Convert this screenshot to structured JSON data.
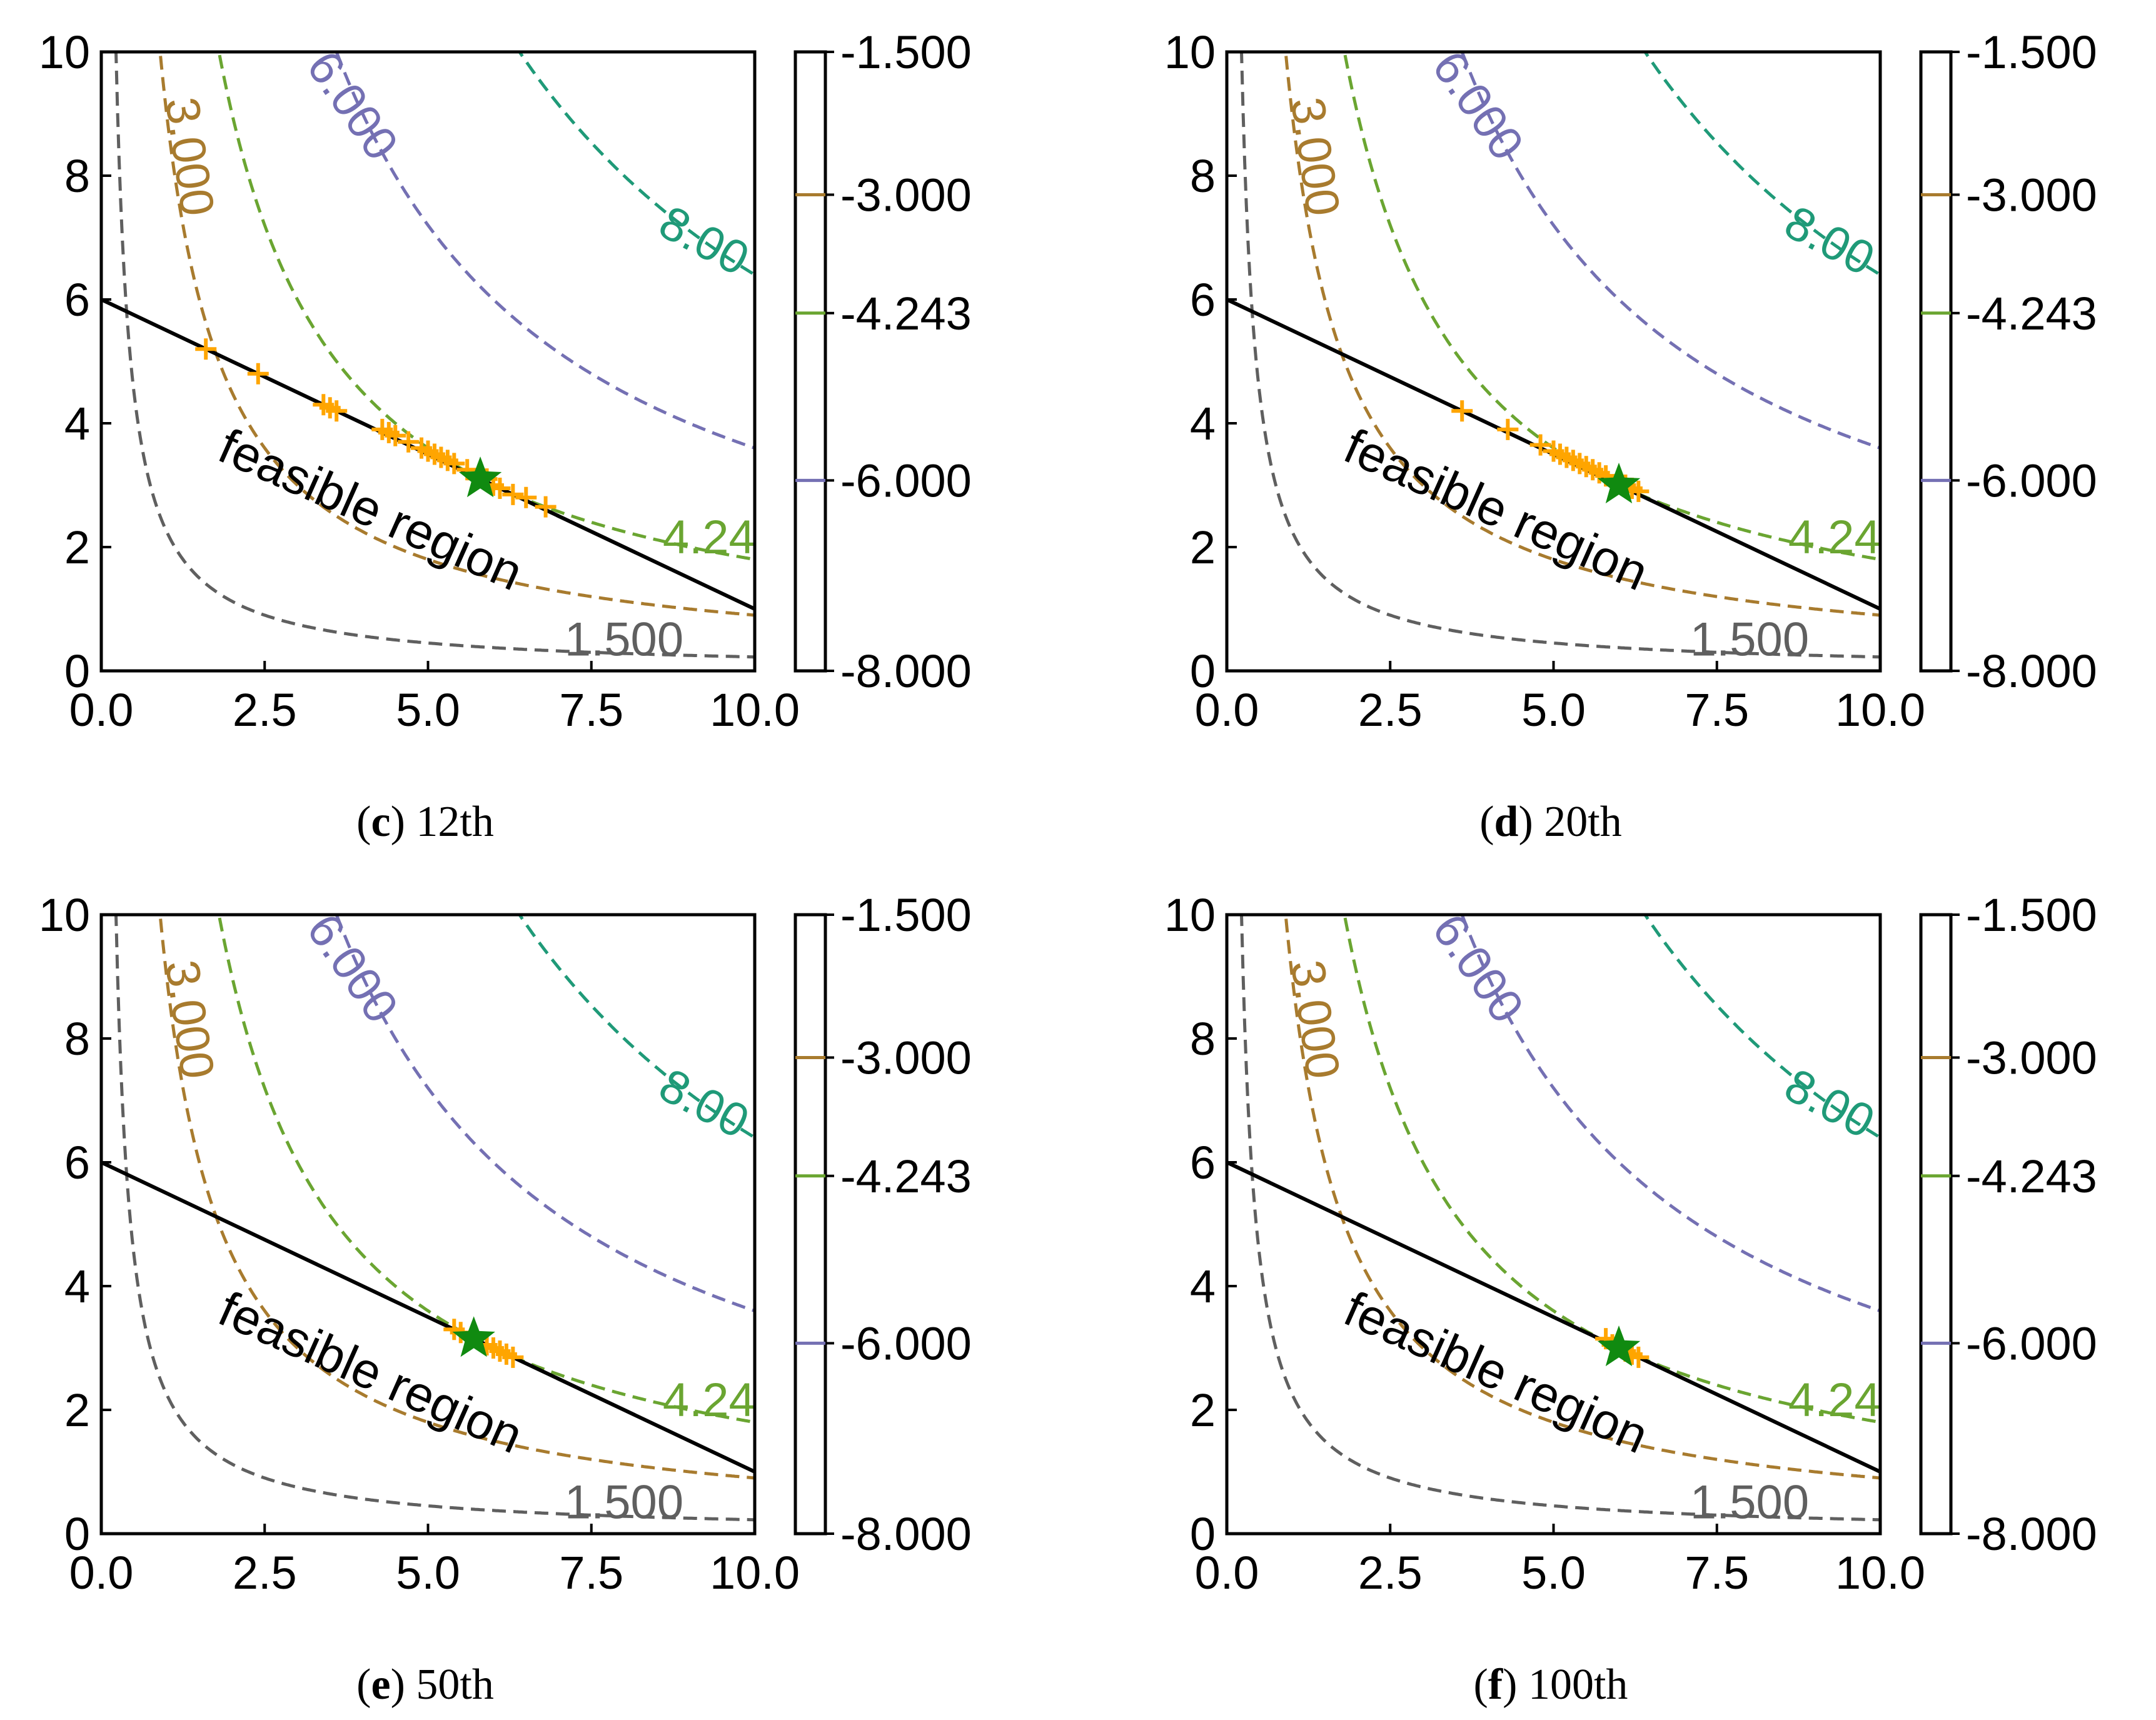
{
  "chart_data": {
    "type": "contour",
    "x_ticks": [
      "0.0",
      "2.5",
      "5.0",
      "7.5",
      "10.0"
    ],
    "y_ticks": [
      "0",
      "2",
      "4",
      "6",
      "8",
      "10"
    ],
    "xlim": [
      0,
      10
    ],
    "ylim": [
      0,
      10
    ],
    "colorbar": {
      "ticks": [
        "-1.500",
        "-3.000",
        "-4.243",
        "-6.000",
        "-8.000"
      ],
      "tick_values": [
        -1.5,
        -3.0,
        -4.243,
        -6.0,
        -8.0
      ],
      "range": [
        -8.0,
        -1.5
      ]
    },
    "contour_levels": [
      {
        "value": 1.5,
        "label": "1.500",
        "color": "#5f5f5f"
      },
      {
        "value": 3.0,
        "label": "3.000",
        "color": "#a87b2e"
      },
      {
        "value": 4.243,
        "label": "4.24",
        "color": "#6aa531"
      },
      {
        "value": 6.0,
        "label": "6.000",
        "color": "#7470b3"
      },
      {
        "value": 8.0,
        "label": "8.00",
        "color": "#1f9a78"
      }
    ],
    "constraint_line": {
      "x": [
        0,
        10
      ],
      "y": [
        6,
        1
      ],
      "color": "#000000"
    },
    "region_label": "feasible region",
    "colors": {
      "samples": "#ffa500",
      "best": "#108a10"
    },
    "panels": [
      {
        "id": "c",
        "caption_letter": "c",
        "caption_text": " 12th",
        "best": [
          5.8,
          3.1
        ],
        "samples": [
          [
            1.6,
            5.2
          ],
          [
            2.4,
            4.8
          ],
          [
            3.4,
            4.3
          ],
          [
            3.5,
            4.25
          ],
          [
            3.6,
            4.2
          ],
          [
            4.3,
            3.9
          ],
          [
            4.4,
            3.85
          ],
          [
            4.5,
            3.8
          ],
          [
            4.7,
            3.7
          ],
          [
            4.9,
            3.6
          ],
          [
            5.0,
            3.55
          ],
          [
            5.1,
            3.5
          ],
          [
            5.2,
            3.45
          ],
          [
            5.3,
            3.4
          ],
          [
            5.4,
            3.35
          ],
          [
            5.6,
            3.25
          ],
          [
            5.9,
            3.1
          ],
          [
            6.0,
            3.0
          ],
          [
            6.1,
            2.95
          ],
          [
            6.3,
            2.85
          ],
          [
            6.5,
            2.8
          ],
          [
            6.8,
            2.65
          ]
        ]
      },
      {
        "id": "d",
        "caption_letter": "d",
        "caption_text": " 20th",
        "best": [
          6.0,
          3.0
        ],
        "samples": [
          [
            3.6,
            4.2
          ],
          [
            4.3,
            3.9
          ],
          [
            4.8,
            3.65
          ],
          [
            5.0,
            3.55
          ],
          [
            5.1,
            3.5
          ],
          [
            5.2,
            3.45
          ],
          [
            5.3,
            3.4
          ],
          [
            5.4,
            3.35
          ],
          [
            5.5,
            3.3
          ],
          [
            5.6,
            3.25
          ],
          [
            5.7,
            3.2
          ],
          [
            5.8,
            3.15
          ],
          [
            6.1,
            3.0
          ],
          [
            6.2,
            2.95
          ],
          [
            6.3,
            2.9
          ]
        ]
      },
      {
        "id": "e",
        "caption_letter": "e",
        "caption_text": " 50th",
        "best": [
          5.7,
          3.15
        ],
        "samples": [
          [
            5.4,
            3.3
          ],
          [
            5.5,
            3.25
          ],
          [
            5.9,
            3.05
          ],
          [
            6.0,
            3.0
          ],
          [
            6.1,
            2.95
          ],
          [
            6.2,
            2.9
          ],
          [
            6.3,
            2.85
          ]
        ]
      },
      {
        "id": "f",
        "caption_letter": "f",
        "caption_text": " 100th",
        "best": [
          6.0,
          3.0
        ],
        "samples": [
          [
            5.8,
            3.15
          ],
          [
            5.9,
            3.05
          ],
          [
            6.1,
            2.95
          ],
          [
            6.2,
            2.9
          ],
          [
            6.3,
            2.85
          ]
        ]
      }
    ]
  }
}
